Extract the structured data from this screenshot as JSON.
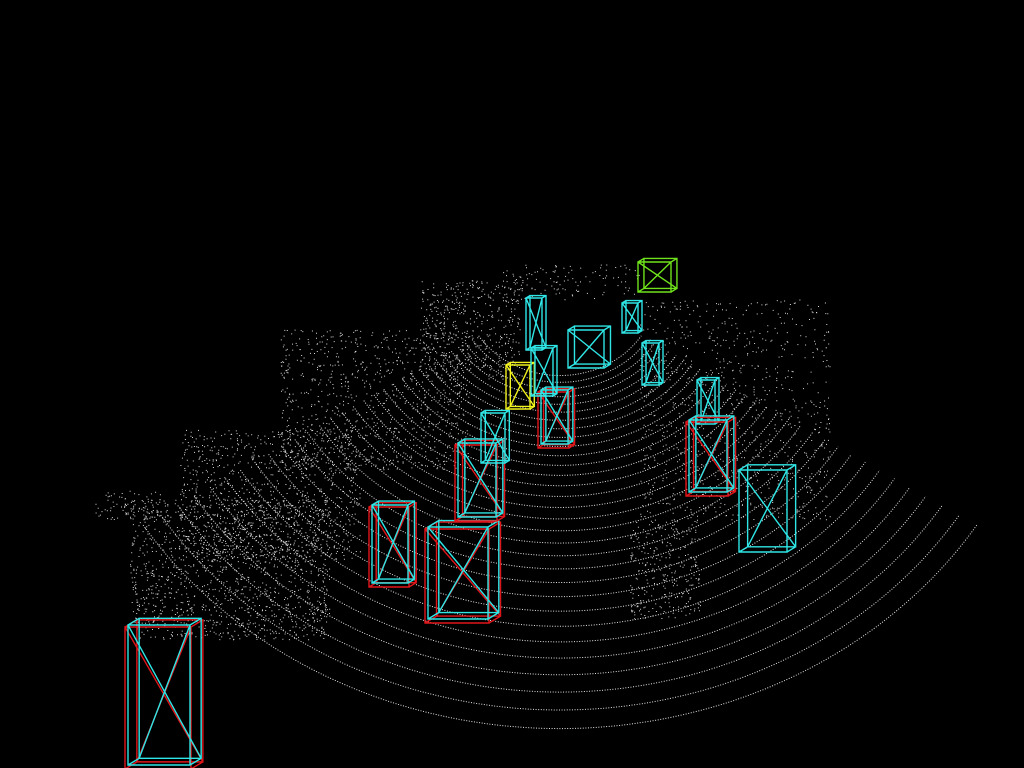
{
  "scene": {
    "background_color": "#000000",
    "point_color": "#ffffff",
    "box_colors": {
      "ground_truth": "#e0151a",
      "prediction": "#2fe6e6",
      "cyclist": "#f2f21c",
      "other": "#6fe21c"
    },
    "boxes": [
      {
        "category": "prediction"
      },
      {
        "category": "prediction"
      },
      {
        "category": "prediction"
      },
      {
        "category": "prediction"
      },
      {
        "category": "prediction"
      },
      {
        "category": "prediction"
      },
      {
        "category": "other"
      },
      {
        "category": "cyclist"
      },
      {
        "category": "prediction"
      },
      {
        "category": "prediction"
      },
      {
        "category": "prediction"
      },
      {
        "category": "prediction"
      },
      {
        "category": "prediction"
      },
      {
        "category": "prediction"
      },
      {
        "category": "prediction"
      },
      {
        "category": "prediction"
      }
    ]
  }
}
